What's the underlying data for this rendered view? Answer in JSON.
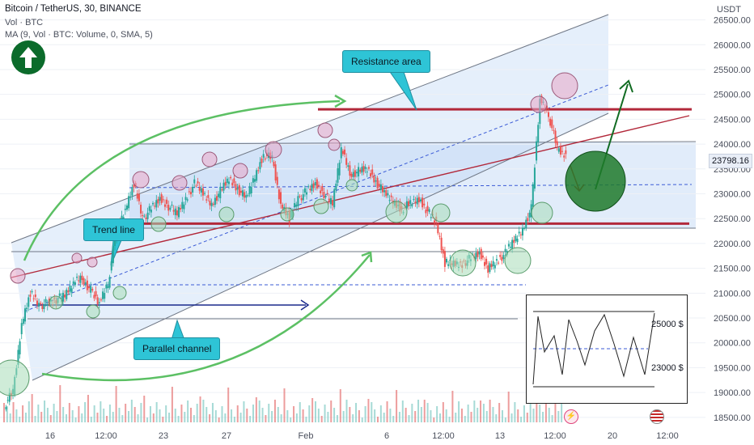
{
  "header": {
    "symbol_line": "Bitcoin / TetherUS, 30, BINANCE",
    "vol_line": "Vol · BTC",
    "ma_line": "MA (9, Vol · BTC: Volume, 0, SMA, 5)"
  },
  "annotations": {
    "resistance": "Resistance area",
    "trend": "Trend line",
    "channel": "Parallel channel",
    "inset_high": "25000 $",
    "inset_low": "23000 $"
  },
  "price_tag": "23798.16",
  "colors": {
    "channel_fill": "#cfe1f8",
    "resistance": "#b2283a",
    "arrow_green": "#2e8b3a",
    "callout": "#2ec4d6"
  },
  "chart_data": {
    "type": "candlestick",
    "yaxis_unit": "USDT",
    "ylim": [
      18400,
      26900
    ],
    "yticks": [
      18500,
      19000,
      19500,
      20000,
      20500,
      21000,
      21500,
      22000,
      22500,
      23000,
      23500,
      24000,
      24500,
      25000,
      25500,
      26000,
      26500
    ],
    "xtick_labels": [
      "16",
      "12:00",
      "23",
      "27",
      "Feb",
      "6",
      "12:00",
      "13",
      "12:00",
      "20",
      "12:00"
    ],
    "last_price": 23798.16,
    "price_path": [
      {
        "x": 0,
        "p": 18750
      },
      {
        "x": 1,
        "p": 19000
      },
      {
        "x": 2,
        "p": 20400
      },
      {
        "x": 3,
        "p": 21000
      },
      {
        "x": 4,
        "p": 20750
      },
      {
        "x": 5,
        "p": 20800
      },
      {
        "x": 7,
        "p": 20950
      },
      {
        "x": 8,
        "p": 21200
      },
      {
        "x": 9,
        "p": 21300
      },
      {
        "x": 10,
        "p": 21050
      },
      {
        "x": 11,
        "p": 20800
      },
      {
        "x": 12,
        "p": 21200
      },
      {
        "x": 13,
        "p": 22300
      },
      {
        "x": 14,
        "p": 22700
      },
      {
        "x": 15,
        "p": 23200
      },
      {
        "x": 16,
        "p": 22500
      },
      {
        "x": 18,
        "p": 22900
      },
      {
        "x": 20,
        "p": 22600
      },
      {
        "x": 22,
        "p": 23200
      },
      {
        "x": 24,
        "p": 22800
      },
      {
        "x": 26,
        "p": 23300
      },
      {
        "x": 28,
        "p": 22900
      },
      {
        "x": 30,
        "p": 23800
      },
      {
        "x": 31,
        "p": 23700
      },
      {
        "x": 32,
        "p": 22800
      },
      {
        "x": 33,
        "p": 22500
      },
      {
        "x": 34,
        "p": 22900
      },
      {
        "x": 36,
        "p": 23200
      },
      {
        "x": 38,
        "p": 22800
      },
      {
        "x": 39,
        "p": 23900
      },
      {
        "x": 40,
        "p": 23400
      },
      {
        "x": 42,
        "p": 23500
      },
      {
        "x": 44,
        "p": 23000
      },
      {
        "x": 46,
        "p": 22700
      },
      {
        "x": 48,
        "p": 22900
      },
      {
        "x": 50,
        "p": 22400
      },
      {
        "x": 51,
        "p": 21600
      },
      {
        "x": 53,
        "p": 21600
      },
      {
        "x": 55,
        "p": 21800
      },
      {
        "x": 56,
        "p": 21500
      },
      {
        "x": 58,
        "p": 21800
      },
      {
        "x": 60,
        "p": 22300
      },
      {
        "x": 61,
        "p": 22700
      },
      {
        "x": 62,
        "p": 24900
      },
      {
        "x": 63,
        "p": 24600
      },
      {
        "x": 64,
        "p": 23900
      },
      {
        "x": 65,
        "p": 23800
      }
    ],
    "levels": {
      "resistance_top": 24700,
      "resistance_bottom": 22400
    }
  }
}
